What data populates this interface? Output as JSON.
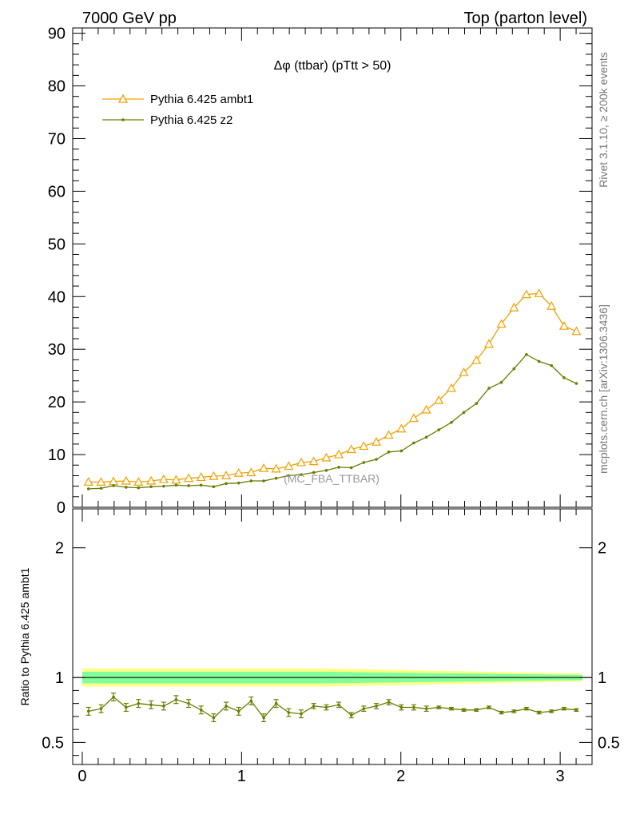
{
  "header": {
    "left": "7000 GeV pp",
    "right": "Top (parton level)"
  },
  "side": {
    "rivet": "Rivet 3.1.10, ≥ 200k events",
    "mcplots": "mcplots.cern.ch [arXiv:1306.3436]"
  },
  "colors": {
    "ambt1": "#f0a000",
    "z2": "#6b7d00",
    "band_green": "#80ffa0",
    "band_yellow": "#ffff80"
  },
  "chart_data": [
    {
      "type": "line",
      "title": "Δφ (ttbar) (pTtt > 50)",
      "watermark": "(MC_FBA_TTBAR)",
      "ylim": [
        0,
        91
      ],
      "xlim": [
        -0.06,
        3.2
      ],
      "yticks": [
        "0",
        "10",
        "20",
        "30",
        "40",
        "50",
        "60",
        "70",
        "80",
        "90"
      ],
      "xticks": [
        "0",
        "1",
        "2",
        "3"
      ],
      "legend_position": "top-left",
      "series": [
        {
          "name": "Pythia 6.425 ambt1",
          "marker": "triangle",
          "x": [
            0.039,
            0.118,
            0.196,
            0.275,
            0.353,
            0.432,
            0.511,
            0.589,
            0.668,
            0.746,
            0.825,
            0.903,
            0.982,
            1.06,
            1.139,
            1.217,
            1.296,
            1.374,
            1.453,
            1.532,
            1.61,
            1.689,
            1.767,
            1.846,
            1.924,
            2.003,
            2.081,
            2.16,
            2.238,
            2.317,
            2.395,
            2.474,
            2.553,
            2.631,
            2.71,
            2.788,
            2.867,
            2.945,
            3.024,
            3.102
          ],
          "values": [
            4.8,
            4.8,
            4.9,
            5.0,
            4.8,
            5.0,
            5.3,
            5.2,
            5.5,
            5.7,
            5.9,
            6.0,
            6.5,
            6.6,
            7.4,
            7.3,
            7.8,
            8.5,
            8.7,
            9.4,
            10.0,
            11.0,
            11.6,
            12.4,
            13.7,
            14.9,
            16.9,
            18.5,
            20.3,
            22.6,
            25.6,
            27.9,
            31.0,
            34.8,
            37.9,
            40.4,
            40.6,
            38.2,
            34.4,
            33.4
          ]
        },
        {
          "name": "Pythia 6.425 z2",
          "marker": "dot",
          "x": [
            0.039,
            0.118,
            0.196,
            0.275,
            0.353,
            0.432,
            0.511,
            0.589,
            0.668,
            0.746,
            0.825,
            0.903,
            0.982,
            1.06,
            1.139,
            1.217,
            1.296,
            1.374,
            1.453,
            1.532,
            1.61,
            1.689,
            1.767,
            1.846,
            1.924,
            2.003,
            2.081,
            2.16,
            2.238,
            2.317,
            2.395,
            2.474,
            2.553,
            2.631,
            2.71,
            2.788,
            2.867,
            2.945,
            3.024,
            3.102
          ],
          "values": [
            3.5,
            3.6,
            4.1,
            3.8,
            3.7,
            3.9,
            4.0,
            4.2,
            4.1,
            4.2,
            3.9,
            4.5,
            4.6,
            5.0,
            5.0,
            5.5,
            6.0,
            6.2,
            6.6,
            7.0,
            7.6,
            7.5,
            8.5,
            9.1,
            10.5,
            10.7,
            12.2,
            13.3,
            14.7,
            16.1,
            18.0,
            19.7,
            22.6,
            23.7,
            26.3,
            29.0,
            27.7,
            26.9,
            24.6,
            23.5
          ]
        }
      ]
    },
    {
      "type": "line",
      "ylabel": "Ratio to Pythia 6.425 ambt1",
      "ylim": [
        0.33,
        2.3
      ],
      "yticks": [
        "0.5",
        "1",
        "2"
      ],
      "reference": 1,
      "series": [
        {
          "name": "Pythia 6.425 z2",
          "x": [
            0.039,
            0.118,
            0.196,
            0.275,
            0.353,
            0.432,
            0.511,
            0.589,
            0.668,
            0.746,
            0.825,
            0.903,
            0.982,
            1.06,
            1.139,
            1.217,
            1.296,
            1.374,
            1.453,
            1.532,
            1.61,
            1.689,
            1.767,
            1.846,
            1.924,
            2.003,
            2.081,
            2.16,
            2.238,
            2.317,
            2.395,
            2.474,
            2.553,
            2.631,
            2.71,
            2.788,
            2.867,
            2.945,
            3.024,
            3.102
          ],
          "values": [
            0.74,
            0.76,
            0.85,
            0.77,
            0.8,
            0.79,
            0.78,
            0.83,
            0.8,
            0.75,
            0.69,
            0.78,
            0.74,
            0.82,
            0.69,
            0.8,
            0.73,
            0.72,
            0.78,
            0.77,
            0.79,
            0.71,
            0.76,
            0.78,
            0.81,
            0.77,
            0.77,
            0.76,
            0.77,
            0.76,
            0.75,
            0.75,
            0.77,
            0.73,
            0.74,
            0.76,
            0.73,
            0.74,
            0.76,
            0.75
          ],
          "errors": [
            0.03,
            0.03,
            0.03,
            0.03,
            0.03,
            0.03,
            0.03,
            0.03,
            0.03,
            0.03,
            0.03,
            0.03,
            0.03,
            0.03,
            0.03,
            0.03,
            0.03,
            0.03,
            0.02,
            0.02,
            0.02,
            0.02,
            0.02,
            0.02,
            0.02,
            0.02,
            0.02,
            0.02,
            0.01,
            0.01,
            0.01,
            0.01,
            0.01,
            0.01,
            0.01,
            0.01,
            0.01,
            0.01,
            0.01,
            0.01
          ]
        }
      ]
    }
  ]
}
